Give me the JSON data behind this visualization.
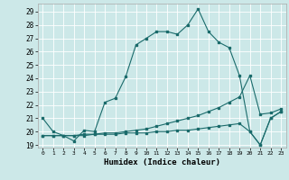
{
  "xlabel": "Humidex (Indice chaleur)",
  "bg_color": "#cce8e8",
  "grid_color": "#ffffff",
  "line_color": "#1a6b6b",
  "xlim": [
    -0.5,
    23.5
  ],
  "ylim": [
    18.8,
    29.6
  ],
  "yticks": [
    19,
    20,
    21,
    22,
    23,
    24,
    25,
    26,
    27,
    28,
    29
  ],
  "xticks": [
    0,
    1,
    2,
    3,
    4,
    5,
    6,
    7,
    8,
    9,
    10,
    11,
    12,
    13,
    14,
    15,
    16,
    17,
    18,
    19,
    20,
    21,
    22,
    23
  ],
  "line1_x": [
    0,
    1,
    2,
    3,
    4,
    5,
    6,
    7,
    8,
    9,
    10,
    11,
    12,
    13,
    14,
    15,
    16,
    17,
    18,
    19,
    20,
    21,
    22,
    23
  ],
  "line1_y": [
    21.0,
    20.0,
    19.7,
    19.3,
    20.1,
    20.0,
    22.2,
    22.5,
    24.1,
    26.5,
    27.0,
    27.5,
    27.5,
    27.3,
    28.0,
    29.2,
    27.5,
    26.7,
    26.3,
    24.2,
    20.0,
    19.0,
    21.0,
    21.5
  ],
  "line2_x": [
    0,
    1,
    2,
    3,
    4,
    5,
    6,
    7,
    8,
    9,
    10,
    11,
    12,
    13,
    14,
    15,
    16,
    17,
    18,
    19,
    20,
    21,
    22,
    23
  ],
  "line2_y": [
    19.7,
    19.7,
    19.7,
    19.7,
    19.8,
    19.8,
    19.9,
    19.9,
    20.0,
    20.1,
    20.2,
    20.4,
    20.6,
    20.8,
    21.0,
    21.2,
    21.5,
    21.8,
    22.2,
    22.6,
    24.2,
    21.3,
    21.4,
    21.7
  ],
  "line3_x": [
    0,
    1,
    2,
    3,
    4,
    5,
    6,
    7,
    8,
    9,
    10,
    11,
    12,
    13,
    14,
    15,
    16,
    17,
    18,
    19,
    20,
    21,
    22,
    23
  ],
  "line3_y": [
    19.7,
    19.7,
    19.7,
    19.7,
    19.7,
    19.8,
    19.8,
    19.8,
    19.9,
    19.9,
    19.9,
    20.0,
    20.0,
    20.1,
    20.1,
    20.2,
    20.3,
    20.4,
    20.5,
    20.6,
    20.0,
    19.0,
    21.0,
    21.5
  ]
}
